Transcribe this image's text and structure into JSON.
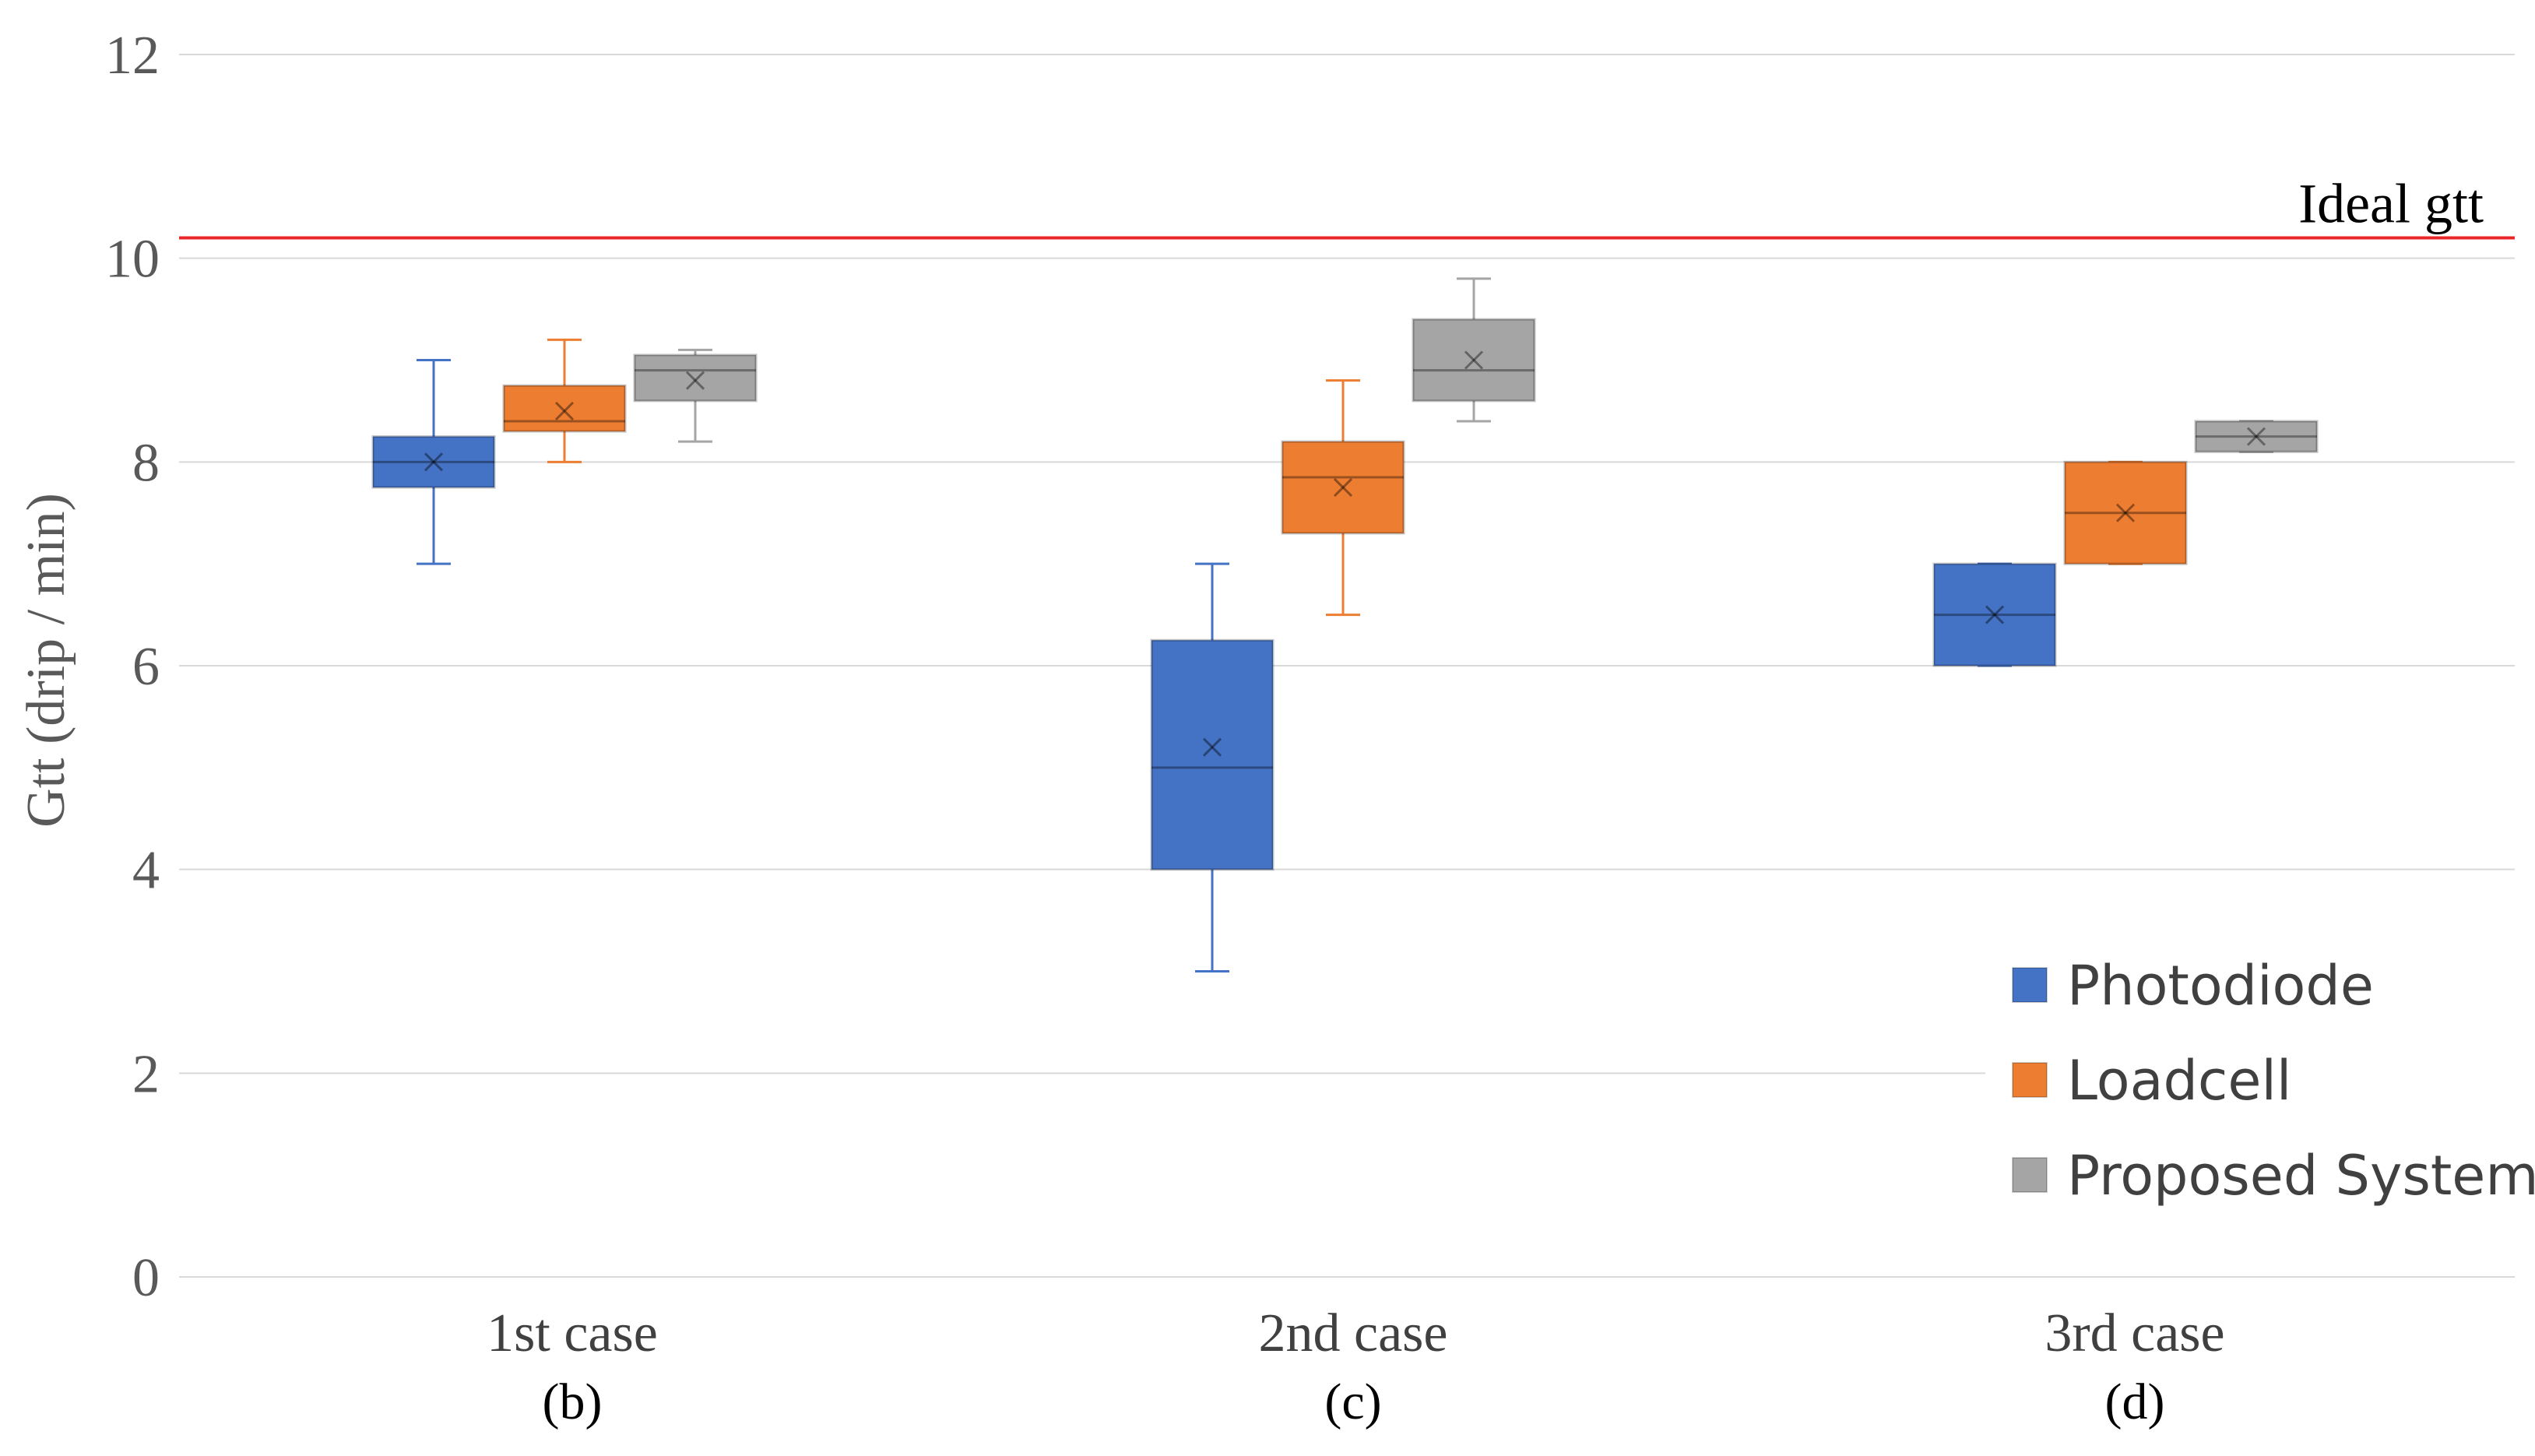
{
  "chart_data": {
    "type": "box",
    "title": "",
    "xlabel": "",
    "ylabel": "Gtt (drip / min)",
    "ylim": [
      0,
      12
    ],
    "yticks": [
      0,
      2,
      4,
      6,
      8,
      10,
      12
    ],
    "grid": true,
    "categories": [
      "1st case",
      "2nd case",
      "3rd case"
    ],
    "category_sublabels": [
      "(b)",
      "(c)",
      "(d)"
    ],
    "legend_position": "bottom-right",
    "reference_line": {
      "label": "Ideal gtt",
      "value": 10.2,
      "color": "#e8262a"
    },
    "series": [
      {
        "name": "Photodiode",
        "color": "#4472c4",
        "boxes": [
          {
            "min": 7.0,
            "q1": 7.75,
            "median": 8.0,
            "q3": 8.25,
            "max": 9.0,
            "mean": 8.0
          },
          {
            "min": 3.0,
            "q1": 4.0,
            "median": 5.0,
            "q3": 6.25,
            "max": 7.0,
            "mean": 5.2
          },
          {
            "min": 6.0,
            "q1": 6.0,
            "median": 6.5,
            "q3": 7.0,
            "max": 7.0,
            "mean": 6.5
          }
        ]
      },
      {
        "name": "Loadcell",
        "color": "#ed7d31",
        "boxes": [
          {
            "min": 8.0,
            "q1": 8.3,
            "median": 8.4,
            "q3": 8.75,
            "max": 9.2,
            "mean": 8.5
          },
          {
            "min": 6.5,
            "q1": 7.3,
            "median": 7.85,
            "q3": 8.2,
            "max": 8.8,
            "mean": 7.75
          },
          {
            "min": 7.0,
            "q1": 7.0,
            "median": 7.5,
            "q3": 8.0,
            "max": 8.0,
            "mean": 7.5
          }
        ]
      },
      {
        "name": "Proposed System",
        "color": "#a5a5a5",
        "boxes": [
          {
            "min": 8.2,
            "q1": 8.6,
            "median": 8.9,
            "q3": 9.05,
            "max": 9.1,
            "mean": 8.8
          },
          {
            "min": 8.4,
            "q1": 8.6,
            "median": 8.9,
            "q3": 9.4,
            "max": 9.8,
            "mean": 9.0
          },
          {
            "min": 8.1,
            "q1": 8.1,
            "median": 8.25,
            "q3": 8.4,
            "max": 8.4,
            "mean": 8.25
          }
        ]
      }
    ]
  }
}
